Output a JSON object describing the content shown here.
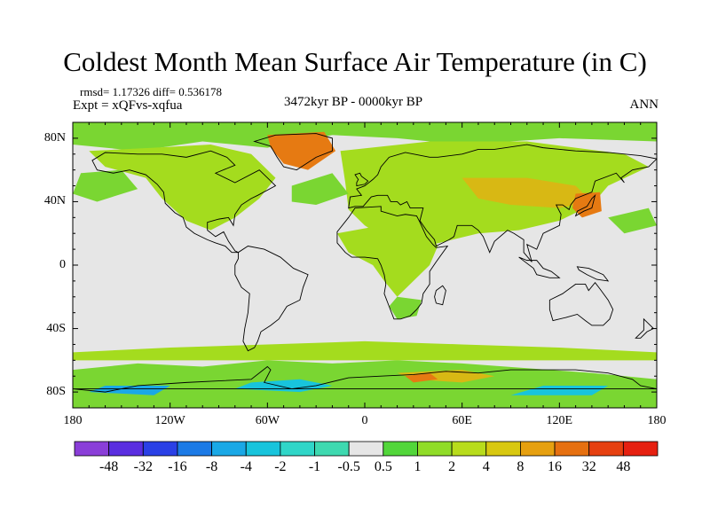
{
  "title": "Coldest Month Mean Surface Air Temperature (in C)",
  "stats": "rmsd= 1.17326  diff= 0.536178",
  "experiment": "Expt = xQFvs-xqfua",
  "period": "3472kyr BP - 0000kyr BP",
  "season": "ANN",
  "lat_ticks": [
    "80N",
    "40N",
    "0",
    "40S",
    "80S"
  ],
  "lat_values": [
    80,
    40,
    0,
    -40,
    -80
  ],
  "lon_ticks": [
    "180",
    "120W",
    "60W",
    "0",
    "60E",
    "120E",
    "180"
  ],
  "lon_values": [
    -180,
    -120,
    -60,
    0,
    60,
    120,
    180
  ],
  "colorbar": {
    "labels": [
      "-48",
      "-32",
      "-16",
      "-8",
      "-4",
      "-2",
      "-1",
      "-0.5",
      "0.5",
      "1",
      "2",
      "4",
      "8",
      "16",
      "32",
      "48"
    ],
    "colors": [
      "#8a3ed8",
      "#5a2ee0",
      "#2a40e6",
      "#1c7ae6",
      "#1aa8e6",
      "#18c4dc",
      "#30d6c8",
      "#3ed9b0",
      "#e6e6e6",
      "#52d63a",
      "#90dc28",
      "#b8dc1c",
      "#d8c810",
      "#e6a010",
      "#e67010",
      "#e64010",
      "#e62010"
    ]
  },
  "palette": {
    "background": "#e6e6e6",
    "positive_light": "#a4dc1e",
    "positive_mid": "#7ad632",
    "positive_strong": "#d8b814",
    "hot": "#e67a12",
    "negative_light": "#18c4dc",
    "negative_mid": "#1aa8e6",
    "coast": "#000000"
  }
}
